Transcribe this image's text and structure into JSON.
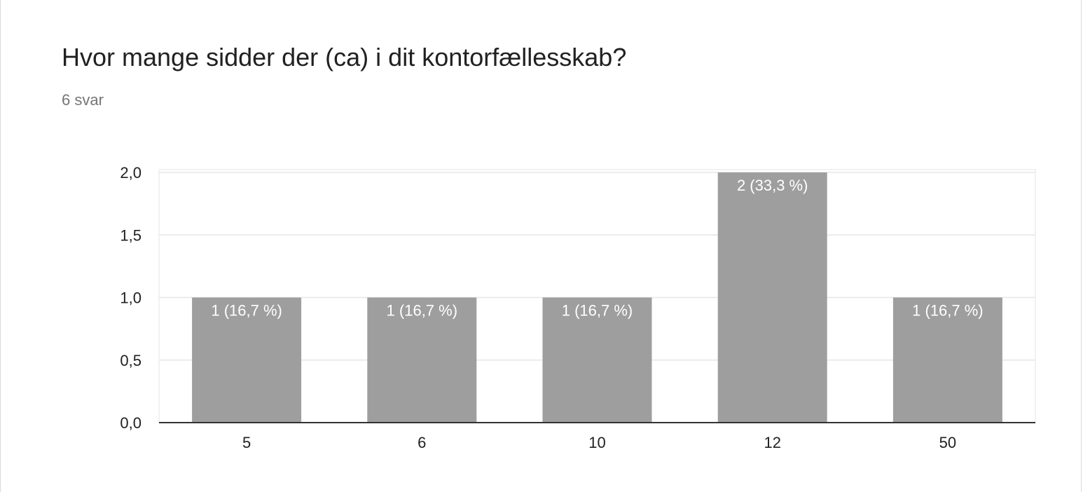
{
  "question": {
    "title": "Hvor mange sidder der (ca) i dit kontorfællesskab?",
    "responses": "6 svar"
  },
  "colors": {
    "bar": "#9e9e9e",
    "grid": "#e6e6e6",
    "axis": "#333333",
    "text": "#212121",
    "muted": "#757575"
  },
  "chart_data": {
    "type": "bar",
    "categories": [
      "5",
      "6",
      "10",
      "12",
      "50"
    ],
    "values": [
      1,
      1,
      1,
      2,
      1
    ],
    "data_labels": [
      "1 (16,7 %)",
      "1 (16,7 %)",
      "1 (16,7 %)",
      "2 (33,3 %)",
      "1 (16,7 %)"
    ],
    "ylim": [
      0,
      2
    ],
    "yticks": [
      0,
      0.5,
      1,
      1.5,
      2
    ],
    "ytick_labels": [
      "0,0",
      "0,5",
      "1,0",
      "1,5",
      "2,0"
    ],
    "grid": true,
    "legend": "none"
  }
}
